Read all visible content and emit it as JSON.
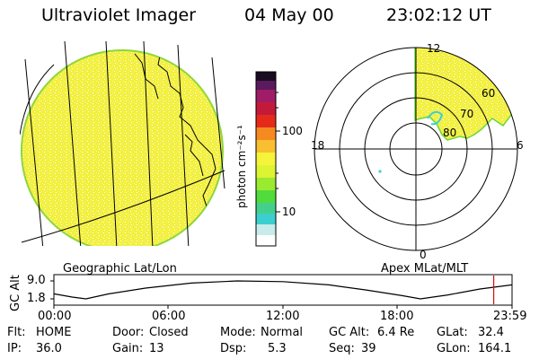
{
  "header": {
    "instrument": "Ultraviolet Imager",
    "date": "04 May 00",
    "time": "23:02:12 UT"
  },
  "colorbar": {
    "unit_label": "photon cm⁻²s⁻¹",
    "ticks": [
      "100",
      "10"
    ]
  },
  "left_panel": {
    "caption": "Geographic Lat/Lon"
  },
  "polar_plot": {
    "caption": "Apex MLat/MLT",
    "mlt_labels": [
      "12",
      "18",
      "6",
      "0"
    ],
    "mlat_labels": [
      "60",
      "70",
      "80"
    ]
  },
  "altitude_strip": {
    "axis_title": "GC Alt",
    "y_ticks": [
      "9.0",
      "1.8"
    ],
    "x_ticks": [
      "00:00",
      "06:00",
      "12:00",
      "18:00",
      "23:59"
    ],
    "current_time_marker_fraction": 0.96
  },
  "status": {
    "flt_label": "Flt:",
    "flt_value": "HOME",
    "ip_label": "IP:",
    "ip_value": "36.0",
    "door_label": "Door:",
    "door_value": "Closed",
    "gain_label": "Gain:",
    "gain_value": "13",
    "mode_label": "Mode:",
    "mode_value": "Normal",
    "dsp_label": "Dsp:",
    "dsp_value": "5.3",
    "gcalt_label": "GC Alt:",
    "gcalt_value": "6.4 Re",
    "seq_label": "Seq:",
    "seq_value": "39",
    "glat_label": "GLat:",
    "glat_value": "32.4",
    "glon_label": "GLon:",
    "glon_value": "164.1"
  },
  "colors": {
    "aurora_yellow": "#f5f53a",
    "aurora_green": "#9adf3a",
    "marker_red": "#d01010"
  }
}
